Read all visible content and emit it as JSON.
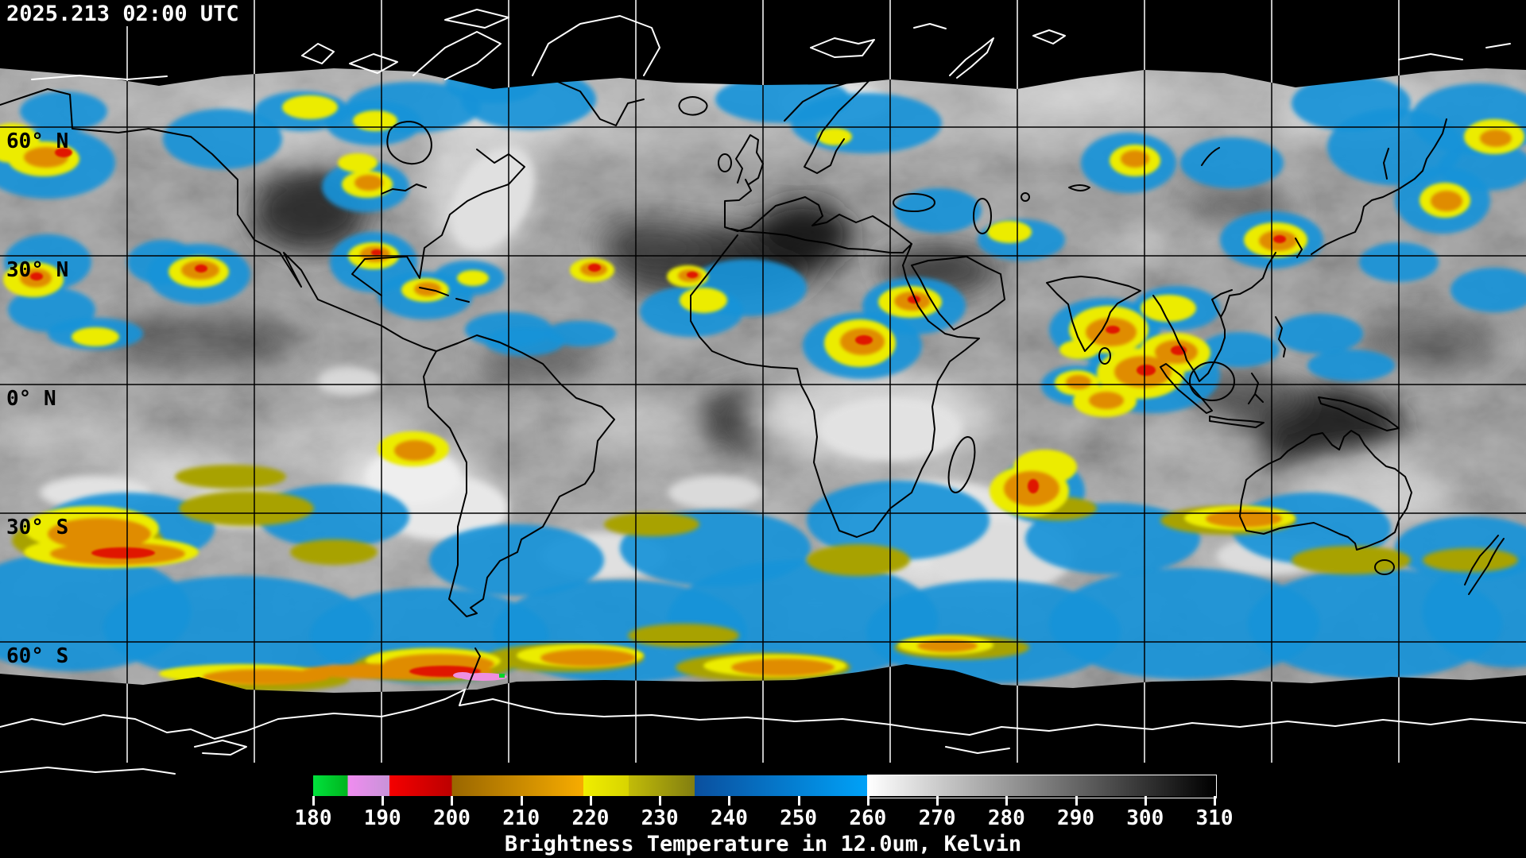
{
  "header": {
    "timestamp": "2025.213 02:00 UTC"
  },
  "map": {
    "latitude_labels": [
      {
        "label": "60° N",
        "latitude_deg": 60
      },
      {
        "label": "30° N",
        "latitude_deg": 30
      },
      {
        "label": "0° N",
        "latitude_deg": 0
      },
      {
        "label": "30° S",
        "latitude_deg": -30
      },
      {
        "label": "60° S",
        "latitude_deg": -60
      }
    ],
    "graticule": {
      "lat_step_deg": 30,
      "lon_step_deg": 30,
      "line_color_over_data": "#000000",
      "line_color_over_void": "#ffffff"
    },
    "no_data_color": "#000000",
    "coastline_color_over_data": "#000000",
    "coastline_color_over_void": "#ffffff",
    "cloud_palette": {
      "cold_blue": "#1793d8",
      "colder_yellow": "#ecec00",
      "olive": "#a8a200",
      "orange": "#e08c00",
      "red": "#e01800",
      "pink": "#ee8fe0",
      "green": "#00d42a",
      "warm_gray_min": "#181818",
      "warm_gray_max": "#eeeeee"
    }
  },
  "colorbar": {
    "title": "Brightness Temperature in 12.0um, Kelvin",
    "units": "Kelvin",
    "range": [
      180,
      310
    ],
    "tick_labels": [
      "180",
      "190",
      "200",
      "210",
      "220",
      "230",
      "240",
      "250",
      "260",
      "270",
      "280",
      "290",
      "300",
      "310"
    ],
    "segments": [
      {
        "from": 180,
        "to": 185,
        "color_start": "#00e23c",
        "color_end": "#00b41e"
      },
      {
        "from": 185,
        "to": 191,
        "color_start": "#f08cf0",
        "color_end": "#c893d8"
      },
      {
        "from": 191,
        "to": 200,
        "color_start": "#f50000",
        "color_end": "#bc0000"
      },
      {
        "from": 200,
        "to": 219,
        "color_start": "#996600",
        "color_end": "#f7ac00"
      },
      {
        "from": 219,
        "to": 225.5,
        "color_start": "#f0ee00",
        "color_end": "#d8d400"
      },
      {
        "from": 225.5,
        "to": 235,
        "color_start": "#c2bc08",
        "color_end": "#827e10"
      },
      {
        "from": 235,
        "to": 260,
        "color_start": "#0a4f9e",
        "color_end": "#00a2f8"
      },
      {
        "from": 260,
        "to": 310,
        "color_start": "#ffffff",
        "color_end": "#000000"
      }
    ],
    "grayscale_outline_color": "#ffffff"
  }
}
